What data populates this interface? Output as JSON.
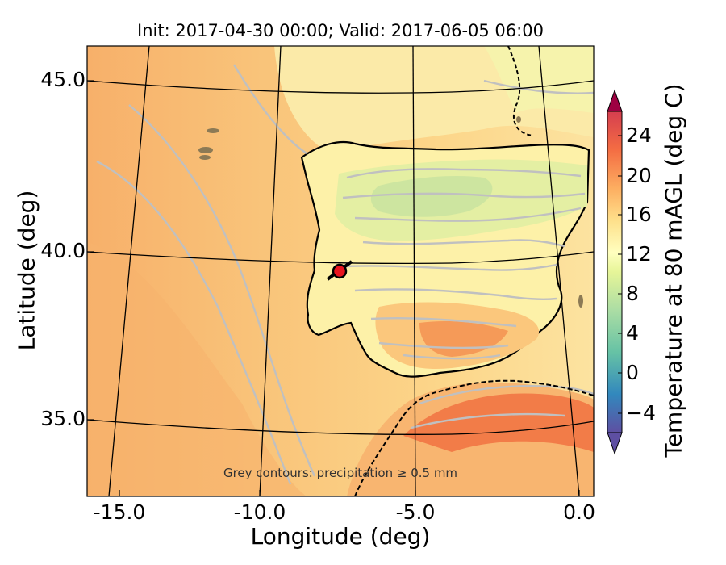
{
  "title": "Init: 2017-04-30 00:00; Valid: 2017-06-05 06:00",
  "xlabel": "Longitude (deg)",
  "ylabel": "Latitude (deg)",
  "lat_ticks": [
    "45.0",
    "40.0",
    "35.0"
  ],
  "lon_ticks": [
    "-15.0",
    "-10.0",
    "-5.0",
    "0.0"
  ],
  "colorbar": {
    "label": "Temperature at 80 mAGL (deg C)",
    "ticks": [
      "24",
      "20",
      "16",
      "12",
      "8",
      "4",
      "0",
      "−4"
    ],
    "range": [
      -6,
      26
    ],
    "extend": "both"
  },
  "annotation": "Grey contours: precipitation ≥ 0.5 mm",
  "map": {
    "region": "Iberian Peninsula",
    "lon_range": [
      -16,
      0
    ],
    "lat_range": [
      33,
      46
    ],
    "marker": {
      "lon": -7.7,
      "lat": 39.4,
      "color": "#e8141e"
    },
    "colors": {
      "ocean_warm": "#f7b872",
      "ocean_mid": "#fbcf80",
      "land_cool": "#fdf2a6",
      "land_green": "#cfe7a0",
      "africa_hot": "#f58a4e",
      "precip_contours": "#c0c0c0",
      "coastline": "#000000"
    }
  }
}
